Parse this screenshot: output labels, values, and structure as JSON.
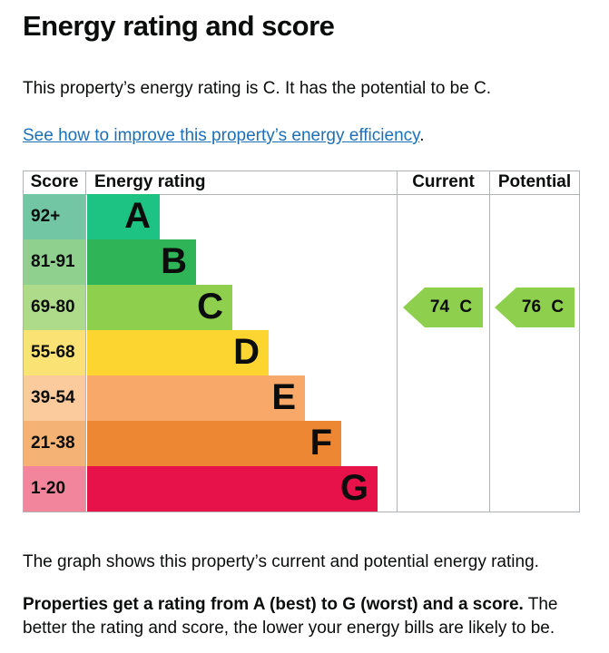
{
  "page": {
    "title": "Energy rating and score",
    "intro": "This property’s energy rating is C. It has the potential to be C.",
    "link": "See how to improve this property’s energy efficiency",
    "link_suffix": ".",
    "caption": "The graph shows this property’s current and potential energy rating.",
    "footer_bold": "Properties get a rating from A (best) to G (worst) and a score.",
    "footer_rest": " The better the rating and score, the lower your energy bills are likely to be."
  },
  "colors": {
    "text": "#0b0c0c",
    "link": "#1d70b8",
    "grid": "#b1b4b6"
  },
  "chart": {
    "headers": {
      "score": "Score",
      "rating": "Energy rating",
      "current": "Current",
      "potential": "Potential"
    },
    "bands": [
      {
        "letter": "A",
        "score": "92+",
        "color": "#1dc383",
        "score_color": "#72c6a4"
      },
      {
        "letter": "B",
        "score": "81-91",
        "color": "#2fb457",
        "score_color": "#90d08f"
      },
      {
        "letter": "C",
        "score": "69-80",
        "color": "#8ecf4d",
        "score_color": "#aedb8a"
      },
      {
        "letter": "D",
        "score": "55-68",
        "color": "#fdd531",
        "score_color": "#fae374"
      },
      {
        "letter": "E",
        "score": "39-54",
        "color": "#f8a96a",
        "score_color": "#fbca9d"
      },
      {
        "letter": "F",
        "score": "21-38",
        "color": "#ee8733",
        "score_color": "#f4b375"
      },
      {
        "letter": "G",
        "score": "1-20",
        "color": "#e8124b",
        "score_color": "#f2859c"
      }
    ],
    "current": {
      "label": "74 C",
      "value": 74,
      "band": "C",
      "color": "#8ecf4d"
    },
    "potential": {
      "label": "76 C",
      "value": 76,
      "band": "C",
      "color": "#8ecf4d"
    }
  },
  "chart_data": {
    "type": "bar",
    "title": "Energy rating and score",
    "columns": [
      "Score",
      "Energy rating",
      "Current",
      "Potential"
    ],
    "categories": [
      "A",
      "B",
      "C",
      "D",
      "E",
      "F",
      "G"
    ],
    "score_ranges": [
      "92+",
      "81-91",
      "69-80",
      "55-68",
      "39-54",
      "21-38",
      "1-20"
    ],
    "band_colors": [
      "#1dc383",
      "#2fb457",
      "#8ecf4d",
      "#fdd531",
      "#f8a96a",
      "#ee8733",
      "#e8124b"
    ],
    "current": {
      "score": 74,
      "rating": "C"
    },
    "potential": {
      "score": 76,
      "rating": "C"
    },
    "legend_position": "none",
    "grid": false
  }
}
